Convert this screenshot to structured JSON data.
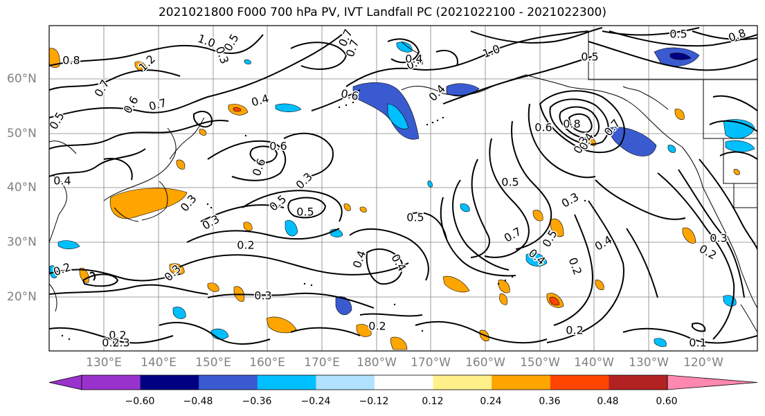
{
  "title": "2021021800 F000 700 hPa PV, IVT Landfall PC (2021022100 - 2021022300)",
  "lat_labels": [
    "60°N",
    "50°N",
    "40°N",
    "30°N",
    "20°N"
  ],
  "lon_labels": [
    "130°E",
    "140°E",
    "150°E",
    "160°E",
    "170°E",
    "180°W",
    "170°W",
    "160°W",
    "150°W",
    "140°W",
    "130°W",
    "120°W"
  ],
  "colorbar": {
    "ticks": [
      "−0.60",
      "−0.48",
      "−0.36",
      "−0.24",
      "−0.12",
      "0.12",
      "0.24",
      "0.36",
      "0.48",
      "0.60"
    ],
    "colors": [
      "#9932cc",
      "#000080",
      "#3a5bd0",
      "#00bfff",
      "#b0e2ff",
      "#ffffff",
      "#fff08a",
      "#ffa500",
      "#ff4500",
      "#b22222",
      "#ff88b0"
    ]
  },
  "contour_labels": [
    "0.8",
    "0.7",
    "1.2",
    "0.5",
    "0.7",
    "0.4",
    "0.3",
    "1.0",
    "0.7",
    "1.0",
    "0.5",
    "0.8",
    "0.6",
    "0.6",
    "0.4",
    "0.7",
    "0.4",
    "0.4",
    "0.6",
    "0.6",
    "0.5",
    "0.5",
    "0.6",
    "0.8",
    "0.3",
    "0.7",
    "0.5",
    "0.4",
    "0.4",
    "0.3",
    "0.5",
    "0.5",
    "0.3",
    "0.7",
    "0.3",
    "0.2",
    "0.5",
    "0.2",
    "0.4",
    "0.4",
    "0.4",
    "0.4",
    "0.5",
    "0.3",
    "0.3",
    "0.2",
    "0.3",
    "0.2",
    "0.3",
    "0.2",
    "0.2",
    "0.3",
    "0.2",
    "0.2",
    "0.1"
  ],
  "filled_regions": {
    "blue": 24,
    "orange": 30
  }
}
